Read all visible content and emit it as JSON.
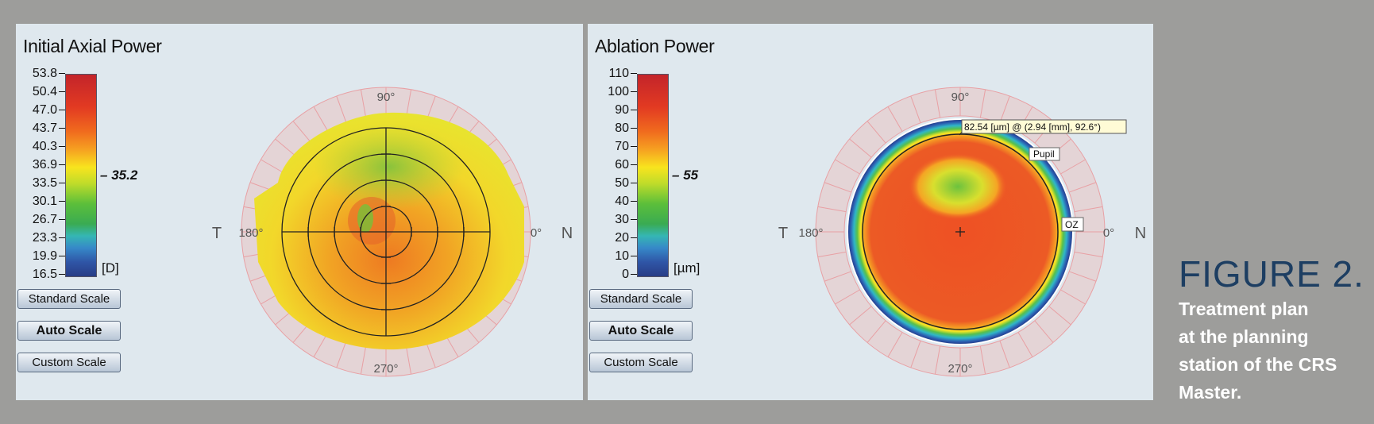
{
  "panels": {
    "axial": {
      "title": "Initial Axial Power",
      "scale_values": [
        "53.8",
        "50.4",
        "47.0",
        "43.7",
        "40.3",
        "36.9",
        "33.5",
        "30.1",
        "26.7",
        "23.3",
        "19.9",
        "16.5"
      ],
      "unit": "[D]",
      "marker": "35.2",
      "buttons": {
        "standard": "Standard Scale",
        "auto": "Auto Scale",
        "custom": "Custom Scale"
      },
      "angles": {
        "top": "90°",
        "bottom": "270°",
        "left": "180°",
        "right": "0°"
      },
      "sides": {
        "left": "T",
        "right": "N"
      }
    },
    "ablation": {
      "title": "Ablation Power",
      "scale_values": [
        "110",
        "100",
        "90",
        "80",
        "70",
        "60",
        "50",
        "40",
        "30",
        "20",
        "10",
        "0"
      ],
      "unit": "[µm]",
      "marker": "55",
      "buttons": {
        "standard": "Standard Scale",
        "auto": "Auto Scale",
        "custom": "Custom Scale"
      },
      "angles": {
        "top": "90°",
        "bottom": "270°",
        "left": "180°",
        "right": "0°"
      },
      "sides": {
        "left": "T",
        "right": "N"
      },
      "tooltip": "82.54 [µm] @ (2.94 [mm], 92.6°)",
      "pupil_label": "Pupil",
      "oz_label": "OZ"
    }
  },
  "caption": {
    "figure": "FIGURE 2.",
    "line1": "Treatment plan",
    "line2": "at the planning",
    "line3": "station of the CRS",
    "line4": "Master."
  }
}
